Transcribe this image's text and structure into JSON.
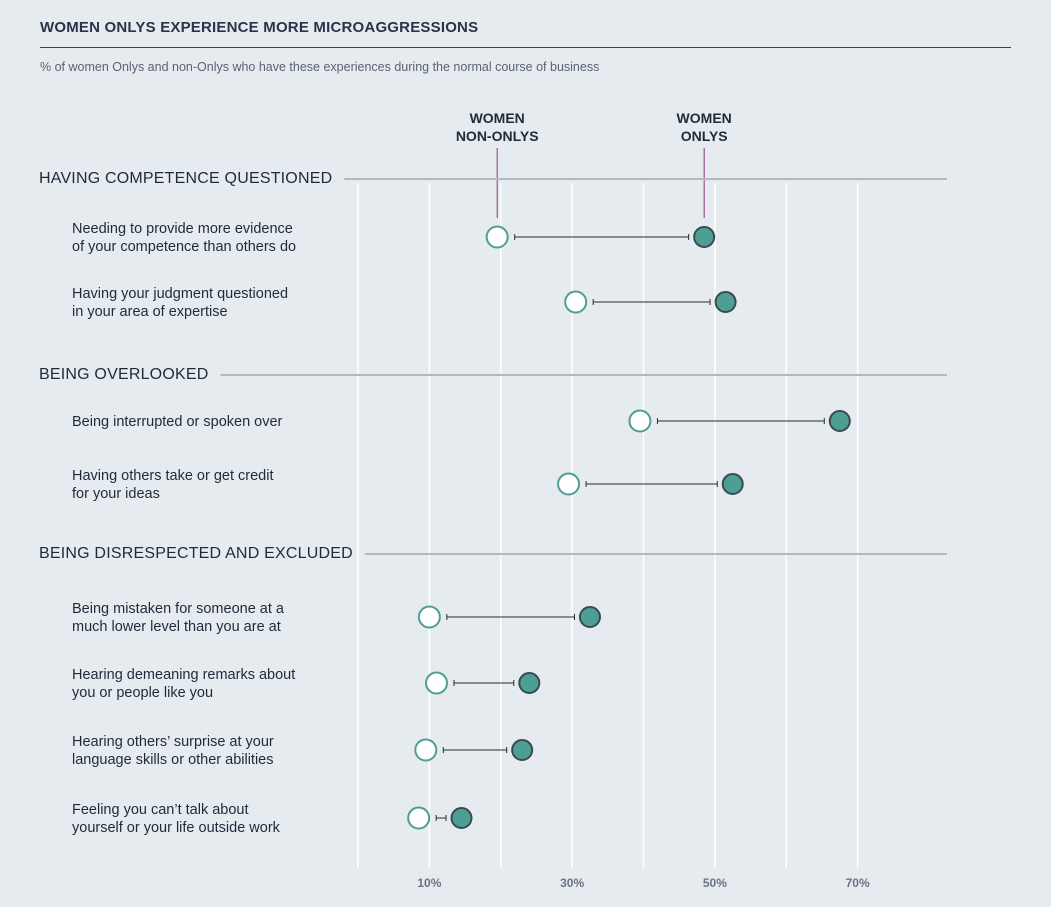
{
  "header": {
    "title": "WOMEN ONLYS EXPERIENCE MORE MICROAGGRESSIONS",
    "subtitle": "% of women Onlys and non-Onlys who have these experiences during the normal course of business"
  },
  "colors": {
    "background": "#e6ebef",
    "onlys_fill": "#4d9e93",
    "onlys_stroke": "#3a4a55",
    "non_onlys_fill": "#ffffff",
    "non_onlys_stroke": "#4d9e93",
    "connector": "#2b2b2b",
    "leader": "#8a3a7a",
    "grid": "#ffffff",
    "section_rule": "#b4b9c0"
  },
  "chart_data": {
    "type": "dumbbell",
    "title": "WOMEN ONLYS EXPERIENCE MORE MICROAGGRESSIONS",
    "subtitle": "% of women Onlys and non-Onlys who have these experiences during the normal course of business",
    "xlim": [
      0,
      80
    ],
    "grid_values": [
      0,
      10,
      20,
      30,
      40,
      50,
      60,
      70
    ],
    "tick_labels": [
      {
        "value": 10,
        "label": "10%"
      },
      {
        "value": 30,
        "label": "30%"
      },
      {
        "value": 50,
        "label": "50%"
      },
      {
        "value": 70,
        "label": "70%"
      }
    ],
    "series": [
      {
        "key": "non_onlys",
        "name_lines": [
          "WOMEN",
          "NON-ONLYS"
        ]
      },
      {
        "key": "onlys",
        "name_lines": [
          "WOMEN",
          "ONLYS"
        ]
      }
    ],
    "sections": [
      {
        "label": "HAVING COMPETENCE QUESTIONED",
        "items": [
          {
            "label_lines": [
              "Needing to provide more evidence",
              "of your competence than others do"
            ],
            "non_onlys": 19.5,
            "onlys": 48.5
          },
          {
            "label_lines": [
              "Having your judgment questioned",
              "in your area of expertise"
            ],
            "non_onlys": 30.5,
            "onlys": 51.5
          }
        ]
      },
      {
        "label": "BEING OVERLOOKED",
        "items": [
          {
            "label_lines": [
              "Being interrupted or spoken over"
            ],
            "non_onlys": 39.5,
            "onlys": 67.5
          },
          {
            "label_lines": [
              "Having others take or get credit",
              "for your ideas"
            ],
            "non_onlys": 29.5,
            "onlys": 52.5
          }
        ]
      },
      {
        "label": "BEING DISRESPECTED AND EXCLUDED",
        "items": [
          {
            "label_lines": [
              "Being mistaken for someone at a",
              "much lower level than you are at"
            ],
            "non_onlys": 10,
            "onlys": 32.5
          },
          {
            "label_lines": [
              "Hearing demeaning remarks about",
              "you or people like you"
            ],
            "non_onlys": 11,
            "onlys": 24
          },
          {
            "label_lines": [
              "Hearing others’ surprise at your",
              "language skills or other abilities"
            ],
            "non_onlys": 9.5,
            "onlys": 23
          },
          {
            "label_lines": [
              "Feeling you can’t talk about",
              "yourself or your life outside work"
            ],
            "non_onlys": 8.5,
            "onlys": 14.5
          }
        ]
      }
    ]
  }
}
